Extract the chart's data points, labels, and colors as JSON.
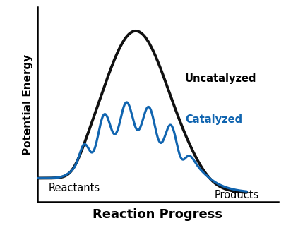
{
  "xlabel": "Reaction Progress",
  "ylabel": "Potential Energy",
  "background_color": "#ffffff",
  "uncatalyzed_color": "#111111",
  "catalyzed_color": "#1165b0",
  "uncatalyzed_linewidth": 2.8,
  "catalyzed_linewidth": 2.3,
  "label_uncatalyzed": "Uncatalyzed",
  "label_catalyzed": "Catalyzed",
  "label_reactants": "Reactants",
  "label_products": "Products",
  "xlabel_fontsize": 13,
  "ylabel_fontsize": 11,
  "annotation_fontsize": 10.5
}
